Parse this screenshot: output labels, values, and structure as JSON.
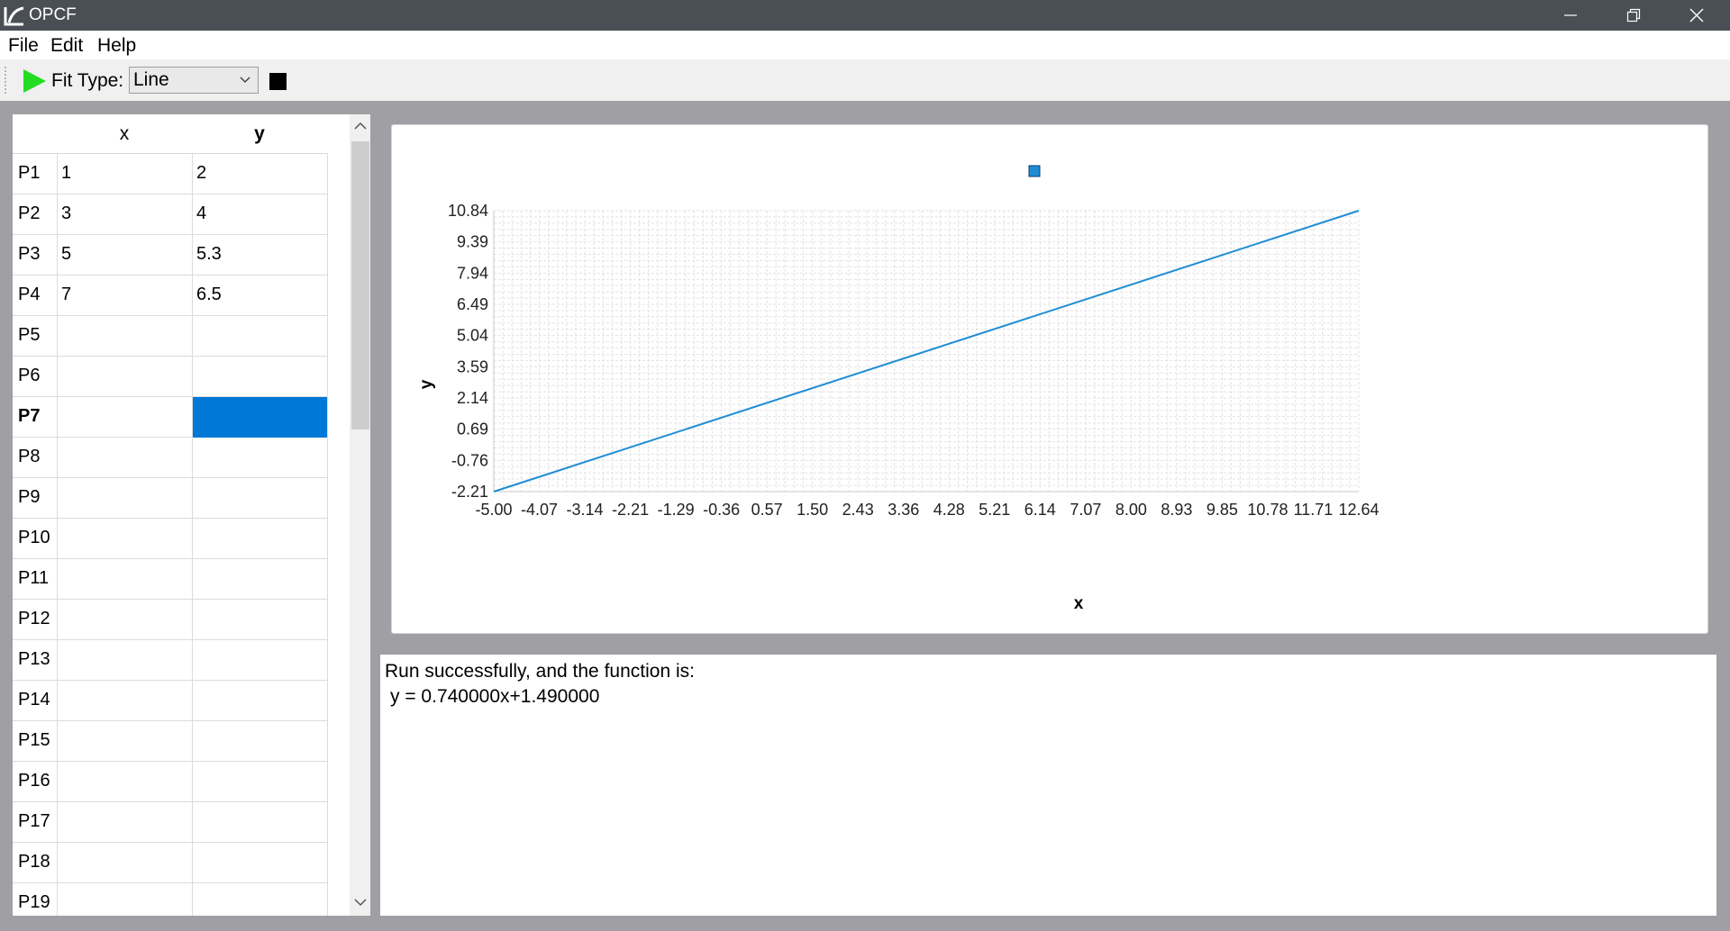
{
  "window": {
    "title": "OPCF"
  },
  "menu": {
    "file": "File",
    "edit": "Edit",
    "help": "Help"
  },
  "toolbar": {
    "run_icon": "play-icon",
    "fit_type_label": "Fit Type:",
    "fit_type_value": "Line",
    "stop_icon": "stop-icon"
  },
  "table": {
    "columns": [
      "x",
      "y"
    ],
    "rows": [
      {
        "label": "P1",
        "x": "1",
        "y": "2"
      },
      {
        "label": "P2",
        "x": "3",
        "y": "4"
      },
      {
        "label": "P3",
        "x": "5",
        "y": "5.3"
      },
      {
        "label": "P4",
        "x": "7",
        "y": "6.5"
      },
      {
        "label": "P5",
        "x": "",
        "y": ""
      },
      {
        "label": "P6",
        "x": "",
        "y": ""
      },
      {
        "label": "P7",
        "x": "",
        "y": ""
      },
      {
        "label": "P8",
        "x": "",
        "y": ""
      },
      {
        "label": "P9",
        "x": "",
        "y": ""
      },
      {
        "label": "P10",
        "x": "",
        "y": ""
      },
      {
        "label": "P11",
        "x": "",
        "y": ""
      },
      {
        "label": "P12",
        "x": "",
        "y": ""
      },
      {
        "label": "P13",
        "x": "",
        "y": ""
      },
      {
        "label": "P14",
        "x": "",
        "y": ""
      },
      {
        "label": "P15",
        "x": "",
        "y": ""
      },
      {
        "label": "P16",
        "x": "",
        "y": ""
      },
      {
        "label": "P17",
        "x": "",
        "y": ""
      },
      {
        "label": "P18",
        "x": "",
        "y": ""
      },
      {
        "label": "P19",
        "x": "",
        "y": ""
      }
    ],
    "current_row": "P7",
    "selected_cell": "P7.y"
  },
  "chart_data": {
    "type": "line",
    "title": "",
    "xlabel": "x",
    "ylabel": "y",
    "xlim": [
      -5.0,
      12.64
    ],
    "ylim": [
      -2.21,
      10.84
    ],
    "x_ticks": [
      "-5.00",
      "-4.07",
      "-3.14",
      "-2.21",
      "-1.29",
      "-0.36",
      "0.57",
      "1.50",
      "2.43",
      "3.36",
      "4.28",
      "5.21",
      "6.14",
      "7.07",
      "8.00",
      "8.93",
      "9.85",
      "10.78",
      "11.71",
      "12.64"
    ],
    "y_ticks": [
      "10.84",
      "9.39",
      "7.94",
      "6.49",
      "5.04",
      "3.59",
      "2.14",
      "0.69",
      "-0.76",
      "-2.21"
    ],
    "series": [
      {
        "name": "",
        "color": "#1f8dd6",
        "x": [
          -5.0,
          12.64
        ],
        "y": [
          -2.21,
          10.84
        ]
      }
    ],
    "legend": "top-center",
    "grid": true
  },
  "output": {
    "line1": "Run successfully, and the function is:",
    "line2": "y = 0.740000x+1.490000"
  }
}
